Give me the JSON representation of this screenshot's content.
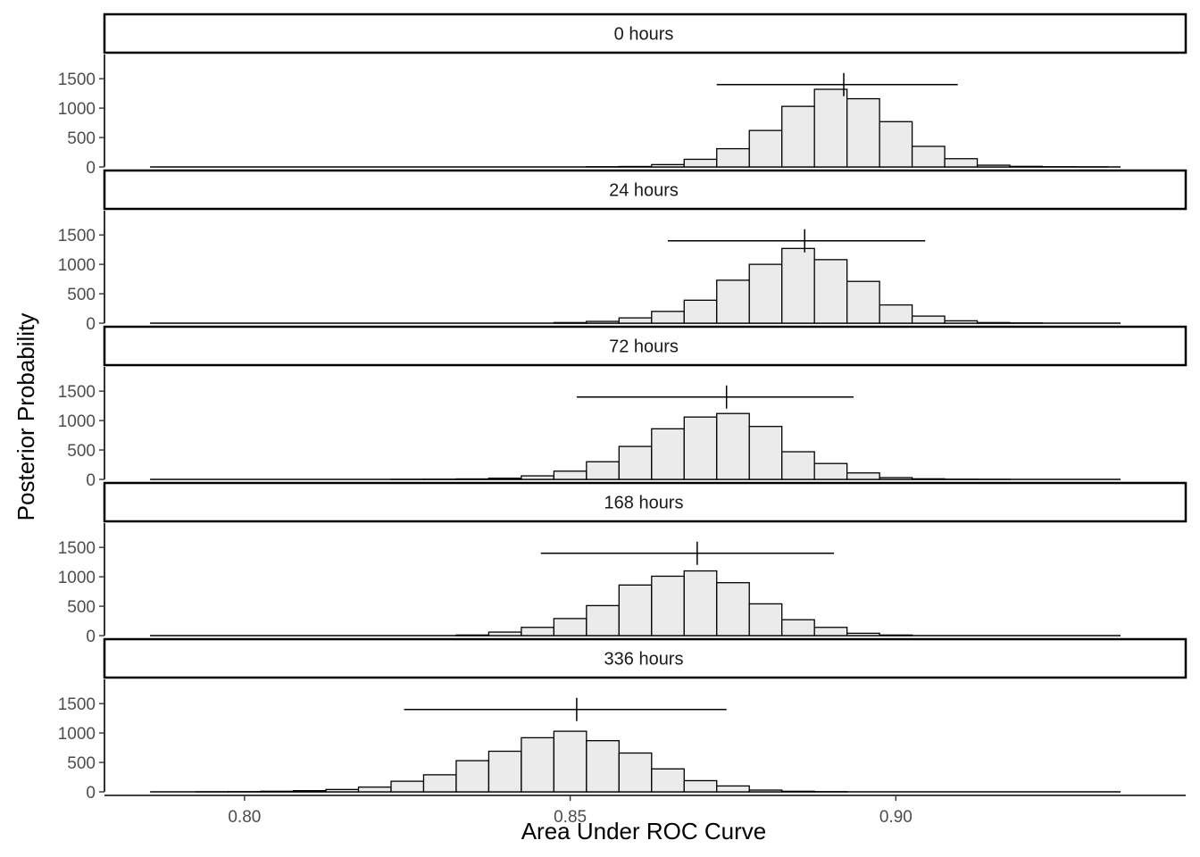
{
  "chart_data": {
    "type": "bar",
    "subtype": "faceted-histogram",
    "xlabel": "Area Under ROC Curve",
    "ylabel": "Posterior Probability",
    "xlim": [
      0.7785,
      0.9445
    ],
    "ylim": [
      0,
      1700
    ],
    "x_ticks": [
      0.8,
      0.85,
      0.9
    ],
    "x_tick_labels": [
      "0.80",
      "0.85",
      "0.90"
    ],
    "y_ticks": [
      0,
      500,
      1000,
      1500
    ],
    "y_tick_labels": [
      "0",
      "500",
      "1000",
      "1500"
    ],
    "bin_width": 0.005,
    "baseline_range": [
      0.7855,
      0.9345
    ],
    "grid": false,
    "fill_color": "#ebebeb",
    "edge_color": "#000000",
    "panels": [
      {
        "label": "0 hours",
        "bin_centers": [
          0.855,
          0.86,
          0.865,
          0.87,
          0.875,
          0.88,
          0.885,
          0.89,
          0.895,
          0.9,
          0.905,
          0.91,
          0.915,
          0.92,
          0.925,
          0.93
        ],
        "counts": [
          3,
          8,
          40,
          130,
          310,
          620,
          1030,
          1320,
          1160,
          770,
          350,
          140,
          30,
          10,
          3,
          1
        ],
        "interval": [
          0.8725,
          0.9095
        ],
        "point": 0.892
      },
      {
        "label": "24 hours",
        "bin_centers": [
          0.85,
          0.855,
          0.86,
          0.865,
          0.87,
          0.875,
          0.88,
          0.885,
          0.89,
          0.895,
          0.9,
          0.905,
          0.91,
          0.915,
          0.92
        ],
        "counts": [
          10,
          30,
          90,
          200,
          390,
          730,
          1000,
          1270,
          1080,
          710,
          310,
          120,
          40,
          10,
          3
        ],
        "interval": [
          0.865,
          0.9045
        ],
        "point": 0.886
      },
      {
        "label": "72 hours",
        "bin_centers": [
          0.825,
          0.83,
          0.835,
          0.84,
          0.845,
          0.85,
          0.855,
          0.86,
          0.865,
          0.87,
          0.875,
          0.88,
          0.885,
          0.89,
          0.895,
          0.9,
          0.905,
          0.91,
          0.915
        ],
        "counts": [
          1,
          3,
          8,
          20,
          60,
          140,
          300,
          560,
          860,
          1060,
          1120,
          900,
          470,
          270,
          110,
          30,
          10,
          3,
          1
        ],
        "interval": [
          0.851,
          0.8935
        ],
        "point": 0.874
      },
      {
        "label": "168 hours",
        "bin_centers": [
          0.835,
          0.84,
          0.845,
          0.85,
          0.855,
          0.86,
          0.865,
          0.87,
          0.875,
          0.88,
          0.885,
          0.89,
          0.895,
          0.9
        ],
        "counts": [
          10,
          60,
          140,
          290,
          510,
          860,
          1010,
          1100,
          900,
          540,
          270,
          140,
          40,
          10
        ],
        "interval": [
          0.8455,
          0.8905
        ],
        "point": 0.8695
      },
      {
        "label": "336 hours",
        "bin_centers": [
          0.795,
          0.8,
          0.805,
          0.81,
          0.815,
          0.82,
          0.825,
          0.83,
          0.835,
          0.84,
          0.845,
          0.85,
          0.855,
          0.86,
          0.865,
          0.87,
          0.875,
          0.88,
          0.885,
          0.89
        ],
        "counts": [
          1,
          3,
          10,
          20,
          40,
          80,
          180,
          290,
          530,
          690,
          920,
          1030,
          870,
          660,
          390,
          190,
          100,
          30,
          10,
          3
        ],
        "interval": [
          0.8245,
          0.874
        ],
        "point": 0.851
      }
    ]
  }
}
